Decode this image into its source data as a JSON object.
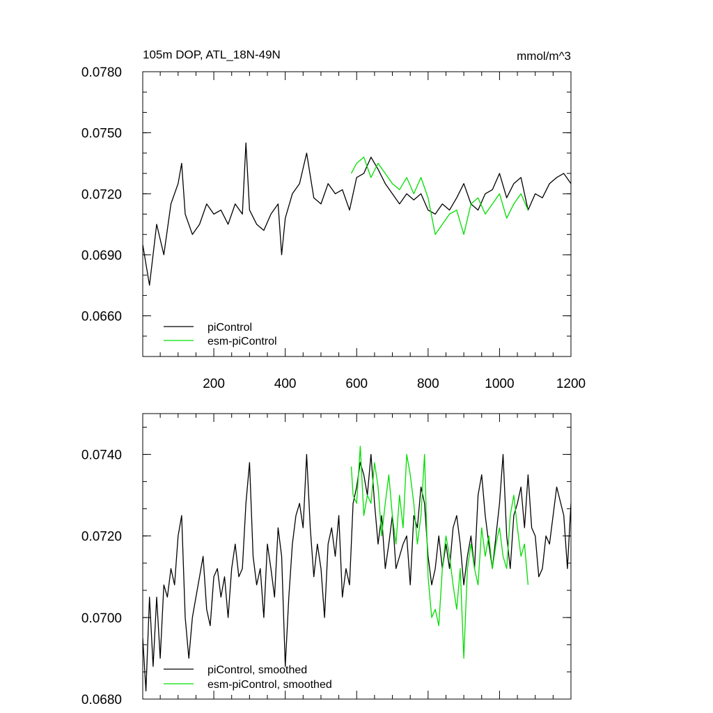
{
  "chart_data": [
    {
      "type": "line",
      "title": "105m DOP, ATL_18N-49N",
      "units": "mmol/m^3",
      "xlabel": "",
      "ylabel": "",
      "xlim": [
        1,
        1200
      ],
      "ylim": [
        0.064,
        0.078
      ],
      "xticks": [
        200,
        400,
        600,
        800,
        1000,
        1200
      ],
      "yticks": [
        0.066,
        0.069,
        0.072,
        0.075,
        0.078
      ],
      "ytick_labels": [
        "0.0660",
        "0.0690",
        "0.0720",
        "0.0750",
        "0.0780"
      ],
      "legend_placement": "bottom-left",
      "series": [
        {
          "name": "piControl",
          "color": "#000000",
          "x": [
            1,
            20,
            40,
            60,
            80,
            100,
            110,
            120,
            140,
            160,
            180,
            200,
            220,
            240,
            260,
            280,
            290,
            300,
            320,
            340,
            360,
            380,
            390,
            400,
            420,
            440,
            460,
            480,
            500,
            520,
            540,
            560,
            580,
            600,
            620,
            640,
            660,
            680,
            700,
            720,
            740,
            760,
            780,
            800,
            820,
            840,
            860,
            880,
            900,
            920,
            940,
            960,
            980,
            1000,
            1020,
            1040,
            1060,
            1080,
            1100,
            1120,
            1140,
            1160,
            1180,
            1200
          ],
          "y": [
            0.0695,
            0.0675,
            0.0705,
            0.069,
            0.0715,
            0.0725,
            0.0735,
            0.071,
            0.07,
            0.0705,
            0.0715,
            0.071,
            0.0712,
            0.0705,
            0.0715,
            0.071,
            0.0745,
            0.0712,
            0.0705,
            0.0702,
            0.071,
            0.0715,
            0.069,
            0.0708,
            0.072,
            0.0725,
            0.074,
            0.0718,
            0.0715,
            0.0725,
            0.072,
            0.0722,
            0.0712,
            0.0728,
            0.073,
            0.0738,
            0.0732,
            0.0725,
            0.072,
            0.0715,
            0.072,
            0.0717,
            0.072,
            0.0712,
            0.071,
            0.0715,
            0.0712,
            0.0718,
            0.0725,
            0.0715,
            0.0712,
            0.072,
            0.0722,
            0.073,
            0.0718,
            0.0725,
            0.0728,
            0.0712,
            0.072,
            0.0718,
            0.0725,
            0.0728,
            0.073,
            0.0725
          ]
        },
        {
          "name": "esm-piControl",
          "color": "#00dd00",
          "x": [
            585,
            600,
            620,
            640,
            660,
            680,
            700,
            720,
            740,
            760,
            780,
            800,
            820,
            840,
            860,
            880,
            900,
            920,
            940,
            960,
            980,
            1000,
            1020,
            1040,
            1060,
            1080
          ],
          "y": [
            0.073,
            0.0735,
            0.0738,
            0.0728,
            0.0735,
            0.073,
            0.0725,
            0.0722,
            0.0728,
            0.072,
            0.0728,
            0.0718,
            0.07,
            0.0705,
            0.071,
            0.0712,
            0.07,
            0.0715,
            0.0718,
            0.071,
            0.0715,
            0.072,
            0.0708,
            0.0715,
            0.072,
            0.0712
          ]
        }
      ]
    },
    {
      "type": "line",
      "title": "",
      "xlabel": "",
      "ylabel": "",
      "xlim": [
        1,
        1200
      ],
      "ylim": [
        0.068,
        0.075
      ],
      "xticks": [
        200,
        400,
        600,
        800,
        1000,
        1200
      ],
      "yticks": [
        0.068,
        0.07,
        0.072,
        0.074
      ],
      "ytick_labels": [
        "0.0680",
        "0.0700",
        "0.0720",
        "0.0740"
      ],
      "legend_placement": "bottom-left",
      "series": [
        {
          "name": "piControl, smoothed",
          "color": "#000000",
          "x": [
            1,
            10,
            20,
            30,
            40,
            50,
            60,
            70,
            80,
            90,
            100,
            110,
            120,
            130,
            140,
            150,
            160,
            170,
            180,
            190,
            200,
            210,
            220,
            230,
            240,
            250,
            260,
            270,
            280,
            290,
            300,
            310,
            320,
            330,
            340,
            350,
            360,
            370,
            380,
            390,
            400,
            410,
            420,
            430,
            440,
            450,
            460,
            470,
            480,
            490,
            500,
            510,
            520,
            530,
            540,
            550,
            560,
            570,
            580,
            590,
            600,
            610,
            620,
            630,
            640,
            650,
            660,
            670,
            680,
            690,
            700,
            710,
            720,
            730,
            740,
            750,
            760,
            770,
            780,
            790,
            800,
            810,
            820,
            830,
            840,
            850,
            860,
            870,
            880,
            890,
            900,
            910,
            920,
            930,
            940,
            950,
            960,
            970,
            980,
            990,
            1000,
            1010,
            1020,
            1030,
            1040,
            1050,
            1060,
            1070,
            1080,
            1090,
            1100,
            1110,
            1120,
            1130,
            1140,
            1160,
            1180,
            1190,
            1200
          ],
          "y": [
            0.0695,
            0.0682,
            0.0705,
            0.0688,
            0.0705,
            0.069,
            0.0708,
            0.0705,
            0.0712,
            0.0708,
            0.072,
            0.0725,
            0.07,
            0.069,
            0.07,
            0.0705,
            0.071,
            0.0715,
            0.0702,
            0.0698,
            0.071,
            0.0712,
            0.0705,
            0.071,
            0.07,
            0.0712,
            0.0718,
            0.071,
            0.0712,
            0.0728,
            0.0738,
            0.0715,
            0.0708,
            0.0712,
            0.07,
            0.0718,
            0.0712,
            0.0705,
            0.0722,
            0.0715,
            0.0688,
            0.0705,
            0.0718,
            0.0725,
            0.0728,
            0.0722,
            0.074,
            0.0722,
            0.071,
            0.0718,
            0.0712,
            0.07,
            0.0718,
            0.0722,
            0.0715,
            0.0725,
            0.0705,
            0.0712,
            0.0708,
            0.0728,
            0.0732,
            0.0738,
            0.0735,
            0.073,
            0.074,
            0.0728,
            0.0718,
            0.0725,
            0.0712,
            0.0718,
            0.0725,
            0.0712,
            0.0715,
            0.0718,
            0.072,
            0.0708,
            0.0725,
            0.0722,
            0.0732,
            0.0728,
            0.0715,
            0.0708,
            0.0712,
            0.072,
            0.0712,
            0.0718,
            0.0712,
            0.0722,
            0.0725,
            0.0718,
            0.0708,
            0.0715,
            0.072,
            0.0712,
            0.073,
            0.0735,
            0.0725,
            0.0718,
            0.0712,
            0.072,
            0.0728,
            0.074,
            0.072,
            0.0712,
            0.0725,
            0.0728,
            0.0732,
            0.0722,
            0.0735,
            0.0722,
            0.072,
            0.071,
            0.0712,
            0.072,
            0.0718,
            0.0732,
            0.0725,
            0.0712,
            0.0728
          ]
        },
        {
          "name": "esm-piControl, smoothed",
          "color": "#00dd00",
          "x": [
            585,
            590,
            600,
            610,
            620,
            630,
            640,
            650,
            660,
            670,
            680,
            690,
            700,
            710,
            720,
            730,
            740,
            750,
            760,
            770,
            780,
            790,
            800,
            810,
            820,
            830,
            840,
            850,
            860,
            870,
            880,
            890,
            900,
            910,
            920,
            930,
            940,
            950,
            960,
            970,
            980,
            990,
            1000,
            1010,
            1020,
            1030,
            1040,
            1050,
            1060,
            1070,
            1080
          ],
          "y": [
            0.0737,
            0.073,
            0.0728,
            0.0742,
            0.0725,
            0.073,
            0.0728,
            0.0738,
            0.0732,
            0.072,
            0.0728,
            0.0735,
            0.0725,
            0.0718,
            0.073,
            0.0722,
            0.074,
            0.0735,
            0.0728,
            0.0718,
            0.0725,
            0.074,
            0.071,
            0.07,
            0.0702,
            0.0698,
            0.0712,
            0.072,
            0.0715,
            0.0708,
            0.0702,
            0.0712,
            0.069,
            0.0712,
            0.0718,
            0.0712,
            0.0708,
            0.0722,
            0.0715,
            0.072,
            0.0712,
            0.0718,
            0.0722,
            0.0715,
            0.0712,
            0.0725,
            0.073,
            0.0722,
            0.0715,
            0.0718,
            0.0708
          ]
        }
      ]
    }
  ]
}
